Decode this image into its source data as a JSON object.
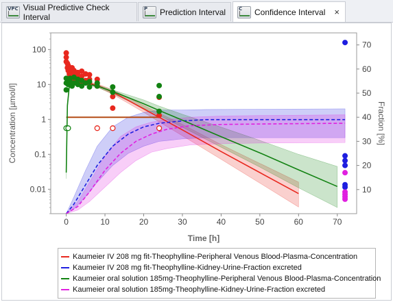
{
  "tabs": [
    {
      "badge": "VPC",
      "label": "Visual Predictive Check Interval"
    },
    {
      "badge": "P",
      "label": "Prediction Interval"
    },
    {
      "badge": "C",
      "label": "Confidence Interval"
    }
  ],
  "close_glyph": "×",
  "chart_data": {
    "type": "line",
    "xlabel": "Time [h]",
    "ylabel_left": "Concentration [µmol/l]",
    "ylabel_right": "Fraction [%]",
    "x_ticks": [
      "0",
      "10",
      "20",
      "30",
      "40",
      "50",
      "60",
      "70"
    ],
    "y_ticks_left": [
      "0.01",
      "0.1",
      "1",
      "10",
      "100"
    ],
    "y_ticks_right": [
      "10",
      "20",
      "30",
      "40",
      "50",
      "60",
      "70"
    ],
    "xlim": [
      -4,
      75
    ],
    "ylim_left_log": [
      0.002,
      300
    ],
    "ylim_right": [
      0,
      75
    ],
    "y_scale_left": "log",
    "legend_position": "bottom",
    "colors": {
      "red": "#e8281e",
      "blue": "#1e1ee0",
      "green": "#128212",
      "magenta": "#e020e0"
    },
    "series": [
      {
        "name": "Kaumeier IV 208 mg fit-Theophylline-Peripheral Venous Blood-Plasma-Concentration",
        "color": "#e8281e",
        "style": "solid",
        "axis": "left",
        "x": [
          0,
          4,
          8,
          12,
          16,
          20,
          24,
          30,
          40,
          50,
          60
        ],
        "y": [
          14,
          12,
          9.5,
          6,
          3.5,
          2,
          1.15,
          0.5,
          0.12,
          0.03,
          0.0075
        ],
        "band_low": [
          13,
          11,
          8.5,
          5.2,
          2.9,
          1.6,
          0.85,
          0.34,
          0.072,
          0.015,
          0.0031
        ],
        "band_high": [
          15,
          13,
          10.5,
          7,
          4.2,
          2.5,
          1.5,
          0.72,
          0.19,
          0.055,
          0.016
        ]
      },
      {
        "name": "Kaumeier IV 208 mg fit-Theophylline-Kidney-Urine-Fraction excreted",
        "color": "#1e1ee0",
        "style": "dashed",
        "axis": "right",
        "x": [
          0,
          2,
          5,
          8,
          12,
          16,
          20,
          24,
          30,
          36,
          50,
          72
        ],
        "y": [
          0,
          4,
          12,
          20,
          28,
          33,
          36,
          37.5,
          38.5,
          39,
          39,
          39
        ],
        "band_low": [
          0,
          2,
          7,
          13,
          20,
          25,
          28,
          30,
          31,
          31.5,
          31.5,
          31.5
        ],
        "band_high": [
          0,
          7,
          18,
          28,
          36,
          40,
          42,
          43,
          43,
          43.2,
          43.3,
          43.5
        ]
      },
      {
        "name": "Kaumeier oral solution 185mg-Theophylline-Peripheral Venous Blood-Plasma-Concentration",
        "color": "#128212",
        "style": "solid",
        "axis": "left",
        "x": [
          0,
          0.3,
          0.8,
          1.5,
          4,
          8,
          12,
          16,
          20,
          24,
          30,
          40,
          50,
          60,
          70
        ],
        "y": [
          0.03,
          2.5,
          9,
          12,
          11.5,
          9,
          6.3,
          4.2,
          2.8,
          1.8,
          0.95,
          0.32,
          0.11,
          0.036,
          0.012
        ],
        "band_low": [
          0.02,
          2,
          8,
          11,
          10.5,
          8.3,
          5.5,
          3.4,
          2.1,
          1.3,
          0.6,
          0.16,
          0.043,
          0.011,
          0.003
        ],
        "band_high": [
          0.04,
          3,
          10,
          13,
          12.5,
          9.7,
          7,
          5,
          3.6,
          2.4,
          1.4,
          0.6,
          0.25,
          0.1,
          0.045
        ]
      },
      {
        "name": "Kaumeier oral solution 185mg-Theophylline-Kidney-Urine-Fraction excreted",
        "color": "#e020e0",
        "style": "dashed",
        "axis": "right",
        "x": [
          0,
          3,
          6,
          10,
          14,
          18,
          22,
          26,
          32,
          40,
          50,
          72
        ],
        "y": [
          0,
          3,
          9,
          18,
          25,
          30,
          33,
          35,
          36.5,
          37,
          37.2,
          37.5
        ],
        "band_low": [
          0,
          1.5,
          5,
          11,
          17,
          22,
          25.5,
          27,
          28.5,
          29,
          29.3,
          29.5
        ],
        "band_high": [
          0,
          5,
          13,
          24,
          32,
          36,
          38,
          39,
          40,
          40.5,
          40.7,
          41
        ]
      }
    ],
    "observed_points": [
      {
        "series": "red_conc",
        "axis": "left",
        "color": "#e8281e",
        "x": [
          0,
          0,
          0,
          0.3,
          0.3,
          0.5,
          0.5,
          0.8,
          1,
          1,
          1.2,
          1.5,
          1.5,
          2,
          2,
          2,
          3,
          3,
          3,
          4,
          4,
          4,
          5,
          5,
          6,
          6,
          6,
          8,
          8,
          8,
          12,
          12,
          24,
          24
        ],
        "y": [
          80,
          60,
          45,
          40,
          30,
          25,
          35,
          20,
          28,
          22,
          18,
          30,
          16,
          25,
          20,
          15,
          22,
          18,
          14,
          24,
          17,
          12,
          20,
          13,
          19,
          14,
          11,
          14,
          11,
          9,
          4.5,
          2.1,
          4.3,
          1.3
        ]
      },
      {
        "series": "green_conc",
        "axis": "left",
        "color": "#128212",
        "x": [
          0,
          0,
          0,
          0.3,
          0.5,
          1,
          1,
          1.5,
          2,
          2,
          3,
          3,
          4,
          4,
          5,
          6,
          6,
          8,
          8,
          12,
          12,
          24,
          24,
          24
        ],
        "y": [
          15,
          11,
          7,
          14,
          10,
          15,
          12,
          9,
          16,
          11,
          14,
          10,
          13,
          9,
          11,
          12,
          8.5,
          11,
          9,
          8.5,
          6,
          9.3,
          4.5,
          1.7
        ]
      },
      {
        "series": "blue_frac",
        "axis": "right",
        "color": "#1e1ee0",
        "x": [
          72,
          72,
          72,
          72,
          72,
          72
        ],
        "y": [
          71,
          24,
          22,
          20,
          12,
          11
        ]
      },
      {
        "series": "magenta_frac",
        "axis": "right",
        "color": "#e020e0",
        "x": [
          72,
          72,
          72,
          72,
          72
        ],
        "y": [
          17,
          9,
          8,
          7,
          6
        ]
      }
    ],
    "hollow_points": [
      {
        "color": "#e8281e",
        "axis": "left",
        "x": [
          8,
          12,
          24
        ],
        "y": [
          0.56,
          0.56,
          0.56
        ]
      },
      {
        "color": "#128212",
        "axis": "left",
        "x": [
          0,
          0.5
        ],
        "y": [
          0.56,
          0.56
        ]
      }
    ],
    "reference_line": {
      "color": "#b44a14",
      "axis": "left",
      "x": [
        0,
        24
      ],
      "y": 1.15
    }
  },
  "legend": [
    {
      "label": "Kaumeier IV 208 mg fit-Theophylline-Peripheral Venous Blood-Plasma-Concentration",
      "color": "#e8281e",
      "style": "solid"
    },
    {
      "label": "Kaumeier IV 208 mg fit-Theophylline-Kidney-Urine-Fraction excreted",
      "color": "#1e1ee0",
      "style": "dashed"
    },
    {
      "label": "Kaumeier oral solution 185mg-Theophylline-Peripheral Venous Blood-Plasma-Concentration",
      "color": "#128212",
      "style": "solid"
    },
    {
      "label": "Kaumeier oral solution 185mg-Theophylline-Kidney-Urine-Fraction excreted",
      "color": "#e020e0",
      "style": "dashed"
    }
  ]
}
